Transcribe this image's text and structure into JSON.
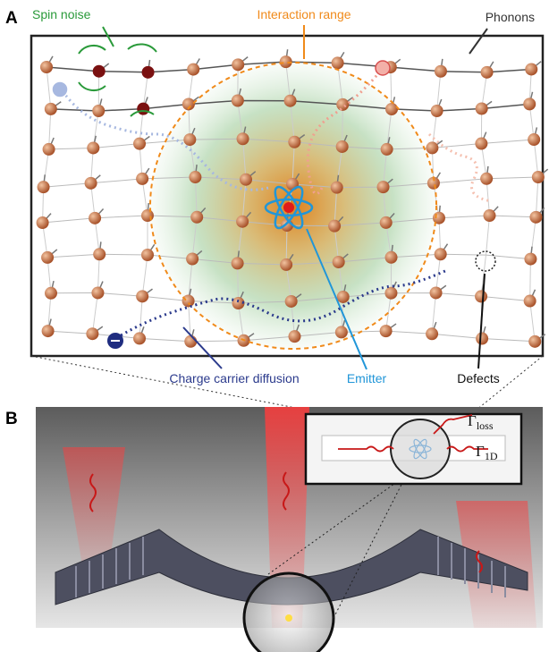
{
  "panel_a": {
    "letter": "A",
    "labels": {
      "spin_noise": "Spin noise",
      "interaction_range": "Interaction range",
      "phonons": "Phonons",
      "charge_carrier_diffusion": "Charge carrier diffusion",
      "emitter": "Emitter",
      "defects": "Defects"
    }
  },
  "panel_b": {
    "letter": "B",
    "gamma_loss": {
      "symbol": "Γ",
      "subscript": "loss"
    },
    "gamma_1d": {
      "symbol": "Γ",
      "subscript": "1D"
    }
  }
}
